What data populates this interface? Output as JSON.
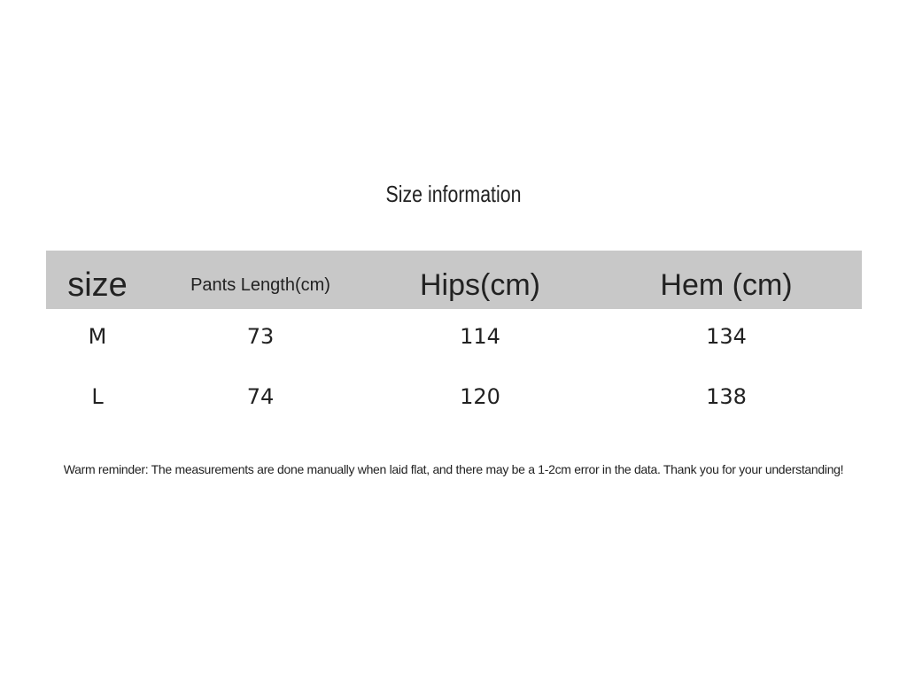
{
  "title": "Size information",
  "table": {
    "header": [
      "size",
      "Pants Length(cm)",
      "Hips(cm)",
      "Hem (cm)"
    ],
    "rows": [
      [
        "M",
        73,
        114,
        134
      ],
      [
        "L",
        74,
        120,
        138
      ]
    ]
  },
  "note": "Warm reminder: The measurements are done manually when laid flat, and there may be a 1-2cm error in the data. Thank you for your understanding!"
}
